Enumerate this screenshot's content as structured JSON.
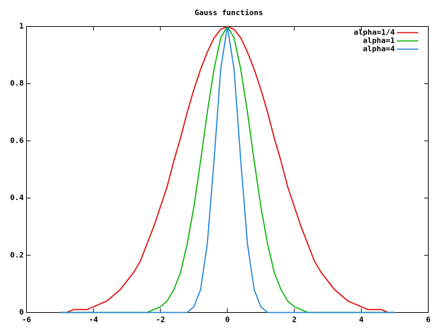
{
  "chart_data": {
    "type": "line",
    "title": "Gauss functions",
    "x": [
      -5,
      -4.8,
      -4.6,
      -4.4,
      -4.2,
      -4,
      -3.8,
      -3.6,
      -3.4,
      -3.2,
      -3,
      -2.8,
      -2.6,
      -2.4,
      -2.2,
      -2,
      -1.8,
      -1.6,
      -1.4,
      -1.2,
      -1,
      -0.8,
      -0.6,
      -0.4,
      -0.2,
      0,
      0.2,
      0.4,
      0.6,
      0.8,
      1,
      1.2,
      1.4,
      1.6,
      1.8,
      2,
      2.2,
      2.4,
      2.6,
      2.8,
      3,
      3.2,
      3.4,
      3.6,
      3.8,
      4,
      4.2,
      4.4,
      4.6,
      4.8,
      5
    ],
    "series": [
      {
        "name": "alpha=1/4",
        "color": "#e00000",
        "values": [
          0,
          0,
          0.01,
          0.01,
          0.01,
          0.02,
          0.03,
          0.04,
          0.06,
          0.08,
          0.11,
          0.14,
          0.18,
          0.24,
          0.3,
          0.37,
          0.44,
          0.53,
          0.61,
          0.7,
          0.78,
          0.85,
          0.91,
          0.96,
          0.99,
          1,
          0.99,
          0.96,
          0.91,
          0.85,
          0.78,
          0.7,
          0.61,
          0.53,
          0.44,
          0.37,
          0.3,
          0.24,
          0.18,
          0.14,
          0.11,
          0.08,
          0.06,
          0.04,
          0.03,
          0.02,
          0.01,
          0.01,
          0.01,
          0,
          0
        ]
      },
      {
        "name": "alpha=1",
        "color": "#00b000",
        "values": [
          0,
          0,
          0,
          0,
          0,
          0,
          0,
          0,
          0,
          0,
          0,
          0,
          0,
          0,
          0.01,
          0.02,
          0.04,
          0.08,
          0.14,
          0.24,
          0.37,
          0.53,
          0.7,
          0.85,
          0.96,
          1,
          0.96,
          0.85,
          0.7,
          0.53,
          0.37,
          0.24,
          0.14,
          0.08,
          0.04,
          0.02,
          0.01,
          0,
          0,
          0,
          0,
          0,
          0,
          0,
          0,
          0,
          0,
          0,
          0,
          0,
          0
        ]
      },
      {
        "name": "alpha=4",
        "color": "#1a7fd8",
        "values": [
          0,
          0,
          0,
          0,
          0,
          0,
          0,
          0,
          0,
          0,
          0,
          0,
          0,
          0,
          0,
          0,
          0,
          0,
          0,
          0,
          0.02,
          0.08,
          0.24,
          0.53,
          0.85,
          1,
          0.85,
          0.53,
          0.24,
          0.08,
          0.02,
          0,
          0,
          0,
          0,
          0,
          0,
          0,
          0,
          0,
          0,
          0,
          0,
          0,
          0,
          0,
          0,
          0,
          0,
          0,
          0
        ]
      }
    ],
    "xlim": [
      -6,
      6
    ],
    "xticks": [
      -6,
      -4,
      -2,
      0,
      2,
      4,
      6
    ],
    "ylim": [
      0,
      1
    ],
    "yticks": [
      0,
      0.2,
      0.4,
      0.6,
      0.8,
      1
    ],
    "legend": "top right"
  }
}
